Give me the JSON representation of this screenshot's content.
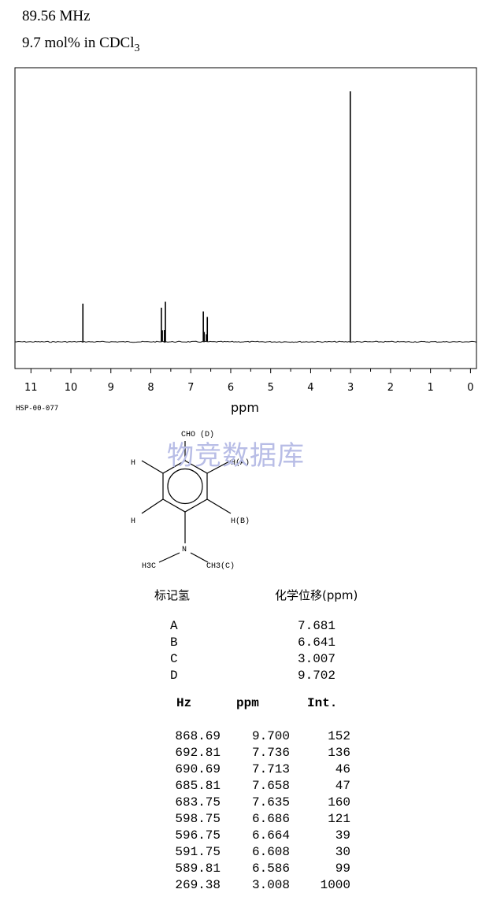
{
  "header": {
    "frequency": "89.56 MHz",
    "solvent_prefix": "9.7 mol% in CDCl",
    "solvent_subscript": "3"
  },
  "spectrum_code": "HSP-00-077",
  "watermark": "物竞数据库",
  "structure_labels": {
    "cho": "CHO (D)",
    "h_a": "H(A)",
    "h_b": "H(B)",
    "h_left_top": "H",
    "h_left_bottom": "H",
    "n": "N",
    "methyl_left": "H3C",
    "methyl_right": "CH3(C)"
  },
  "assignment_table": {
    "header_label": "标记氢",
    "header_shift": "化学位移(ppm)",
    "rows": [
      {
        "label": "A",
        "shift": "7.681"
      },
      {
        "label": "B",
        "shift": "6.641"
      },
      {
        "label": "C",
        "shift": "3.007"
      },
      {
        "label": "D",
        "shift": "9.702"
      }
    ]
  },
  "peak_table": {
    "headers": [
      "Hz",
      "ppm",
      "Int."
    ],
    "rows": [
      [
        "868.69",
        "9.700",
        "152"
      ],
      [
        "692.81",
        "7.736",
        "136"
      ],
      [
        "690.69",
        "7.713",
        "46"
      ],
      [
        "685.81",
        "7.658",
        "47"
      ],
      [
        "683.75",
        "7.635",
        "160"
      ],
      [
        "598.75",
        "6.686",
        "121"
      ],
      [
        "596.75",
        "6.664",
        "39"
      ],
      [
        "591.75",
        "6.608",
        "30"
      ],
      [
        "589.81",
        "6.586",
        "99"
      ],
      [
        "269.38",
        "3.008",
        "1000"
      ]
    ]
  },
  "chart_data": {
    "type": "line",
    "xlabel": "ppm",
    "xlim": [
      11.4,
      -0.15
    ],
    "x_reversed": true,
    "x_ticks": [
      11,
      10,
      9,
      8,
      7,
      6,
      5,
      4,
      3,
      2,
      1,
      0
    ],
    "grid": false,
    "series": [
      {
        "peaks_ppm": [
          9.7,
          7.736,
          7.713,
          7.658,
          7.635,
          6.686,
          6.664,
          6.608,
          6.586,
          3.008
        ],
        "peaks_intensity": [
          152,
          136,
          46,
          47,
          160,
          121,
          39,
          30,
          99,
          1000
        ]
      }
    ]
  }
}
